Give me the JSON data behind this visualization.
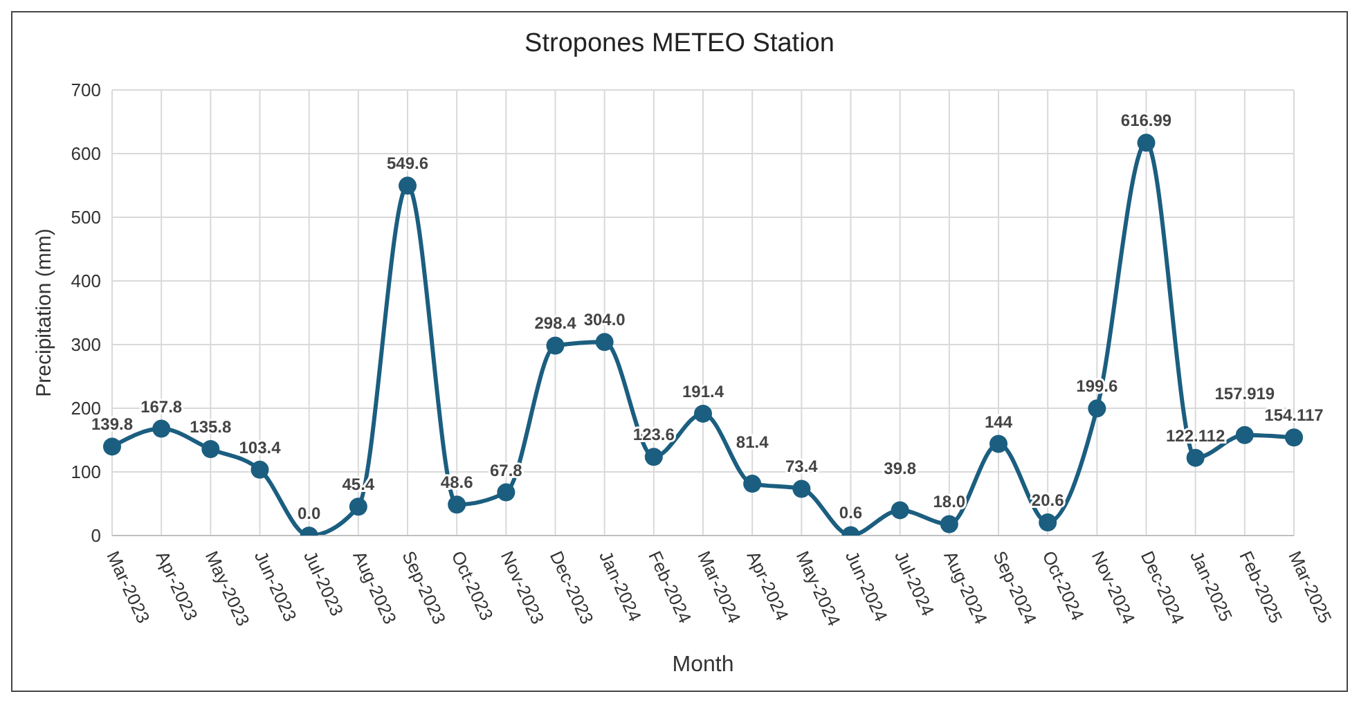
{
  "chart_data": {
    "type": "line",
    "title": "Stropones METEO Station",
    "xlabel": "Month",
    "ylabel": "Precipitation (mm)",
    "categories": [
      "Mar-2023",
      "Apr-2023",
      "May-2023",
      "Jun-2023",
      "Jul-2023",
      "Aug-2023",
      "Sep-2023",
      "Oct-2023",
      "Nov-2023",
      "Dec-2023",
      "Jan-2024",
      "Feb-2024",
      "Mar-2024",
      "Apr-2024",
      "May-2024",
      "Jun-2024",
      "Jul-2024",
      "Aug-2024",
      "Sep-2024",
      "Oct-2024",
      "Nov-2024",
      "Dec-2024",
      "Jan-2025",
      "Feb-2025",
      "Mar-2025"
    ],
    "series": [
      {
        "color": "#1b5e80",
        "values": [
          139.8,
          167.8,
          135.8,
          103.4,
          0.0,
          45.4,
          549.6,
          48.6,
          67.8,
          298.4,
          304.0,
          123.6,
          191.4,
          81.4,
          73.4,
          0.6,
          39.8,
          18.0,
          144,
          20.6,
          199.6,
          616.99,
          122.112,
          157.919,
          154.117
        ],
        "value_labels": [
          "139.8",
          "167.8",
          "135.8",
          "103.4",
          "0.0",
          "45.4",
          "549.6",
          "48.6",
          "67.8",
          "298.4",
          "304.0",
          "123.6",
          "191.4",
          "81.4",
          "73.4",
          "0.6",
          "39.8",
          "18.0",
          "144",
          "20.6",
          "199.6",
          "616.99",
          "122.112",
          "157.919",
          "154.117"
        ]
      }
    ],
    "ylim": [
      0,
      700
    ],
    "yticks": [
      0,
      100,
      200,
      300,
      400,
      500,
      600,
      700
    ],
    "grid": true,
    "legend": false,
    "marker": "circle",
    "line_style": "solid"
  }
}
